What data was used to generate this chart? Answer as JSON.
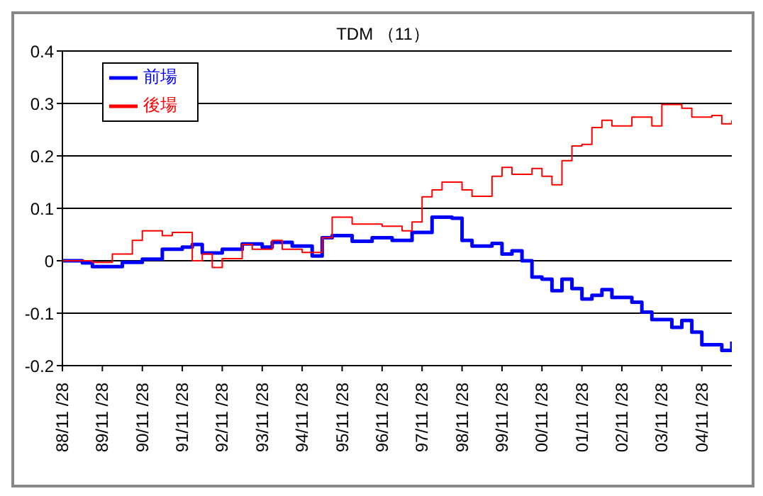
{
  "chart_data": {
    "type": "step",
    "title": "TDM （11）",
    "categories": [
      "88/11 /28",
      null,
      null,
      null,
      "89/11 /28",
      null,
      null,
      null,
      "90/11 /28",
      null,
      null,
      null,
      "91/11 /28",
      null,
      null,
      null,
      "92/11 /28",
      null,
      null,
      null,
      "93/11 /28",
      null,
      null,
      null,
      "94/11 /28",
      null,
      null,
      null,
      "95/11 /28",
      null,
      null,
      null,
      "96/11 /28",
      null,
      null,
      null,
      "97/11 /28",
      null,
      null,
      null,
      "98/11 /28",
      null,
      null,
      null,
      "99/11 /28",
      null,
      null,
      null,
      "00/11 /28",
      null,
      null,
      null,
      "01/11 /28",
      null,
      null,
      null,
      "02/11 /28",
      null,
      null,
      null,
      "03/11 /28",
      null,
      null,
      null,
      "04/11 /28",
      null,
      null,
      null
    ],
    "ylim": [
      -0.2,
      0.4
    ],
    "yticks": [
      -0.2,
      -0.1,
      0,
      0.1,
      0.2,
      0.3,
      0.4
    ],
    "grid": "y",
    "legend": "top left",
    "marker": "none",
    "line_style": "solid",
    "series": [
      {
        "name": "前場",
        "color": "#0000ff",
        "values": [
          0,
          0,
          -0.004,
          -0.011,
          -0.011,
          -0.011,
          -0.003,
          -0.003,
          0.003,
          0.003,
          0.022,
          0.022,
          0.026,
          0.031,
          0.015,
          0.015,
          0.022,
          0.022,
          0.032,
          0.032,
          0.026,
          0.035,
          0.035,
          0.028,
          0.028,
          0.009,
          0.044,
          0.048,
          0.048,
          0.037,
          0.037,
          0.044,
          0.044,
          0.039,
          0.039,
          0.054,
          0.054,
          0.083,
          0.083,
          0.081,
          0.039,
          0.028,
          0.028,
          0.033,
          0.013,
          0.019,
          0,
          -0.031,
          -0.035,
          -0.057,
          -0.035,
          -0.053,
          -0.073,
          -0.066,
          -0.055,
          -0.07,
          -0.07,
          -0.079,
          -0.098,
          -0.112,
          -0.112,
          -0.127,
          -0.114,
          -0.136,
          -0.16,
          -0.16,
          -0.171,
          -0.154
        ]
      },
      {
        "name": "後場",
        "color": "#ff0000",
        "values": [
          0,
          0,
          0,
          -0.003,
          -0.003,
          0.013,
          0.013,
          0.039,
          0.057,
          0.057,
          0.048,
          0.054,
          0.054,
          0,
          0.013,
          -0.013,
          0.004,
          0.004,
          0.031,
          0.022,
          0.022,
          0.039,
          0.022,
          0.022,
          0.016,
          0.016,
          0.044,
          0.083,
          0.083,
          0.07,
          0.07,
          0.07,
          0.066,
          0.066,
          0.057,
          0.074,
          0.122,
          0.135,
          0.15,
          0.15,
          0.135,
          0.123,
          0.123,
          0.161,
          0.178,
          0.165,
          0.165,
          0.176,
          0.161,
          0.145,
          0.191,
          0.219,
          0.222,
          0.254,
          0.268,
          0.257,
          0.257,
          0.274,
          0.274,
          0.257,
          0.298,
          0.298,
          0.291,
          0.274,
          0.274,
          0.277,
          0.261,
          0.268
        ]
      }
    ]
  }
}
